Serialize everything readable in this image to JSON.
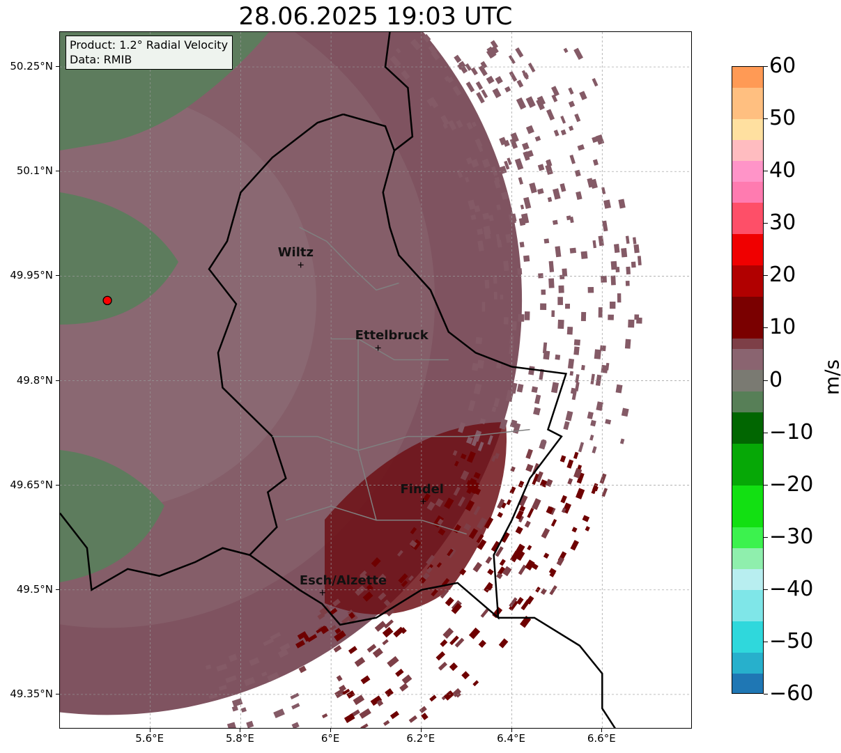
{
  "title": "28.06.2025 19:03 UTC",
  "info_box": {
    "line1": "Product: 1.2° Radial Velocity",
    "line2": "Data: RMIB"
  },
  "axes": {
    "lat_ticks": [
      "50.25°N",
      "50.1°N",
      "49.95°N",
      "49.8°N",
      "49.65°N",
      "49.5°N",
      "49.35°N"
    ],
    "lon_ticks": [
      "5.6°E",
      "5.8°E",
      "6°E",
      "6.2°E",
      "6.4°E",
      "6.6°E"
    ],
    "lat_range": [
      49.3,
      50.3
    ],
    "lon_range": [
      5.4,
      6.8
    ]
  },
  "cities": [
    {
      "name": "Wiltz",
      "lat": 49.966,
      "lon": 5.933
    },
    {
      "name": "Ettelbruck",
      "lat": 49.847,
      "lon": 6.104
    },
    {
      "name": "Findel",
      "lat": 49.627,
      "lon": 6.204
    },
    {
      "name": "Esch/Alzette",
      "lat": 49.496,
      "lon": 5.981
    }
  ],
  "radar_site": {
    "lat": 49.915,
    "lon": 5.505
  },
  "colorbar": {
    "unit": "m/s",
    "min": -60,
    "max": 60,
    "ticks": [
      "60",
      "50",
      "40",
      "30",
      "20",
      "10",
      "0",
      "−10",
      "−20",
      "−30",
      "−40",
      "−50",
      "−60"
    ],
    "segments": [
      {
        "from": -60,
        "to": -56,
        "color": "#1f77b4"
      },
      {
        "from": -56,
        "to": -52,
        "color": "#27b0cc"
      },
      {
        "from": -52,
        "to": -46,
        "color": "#2fd8dc"
      },
      {
        "from": -46,
        "to": -40,
        "color": "#7fe6e8"
      },
      {
        "from": -40,
        "to": -36,
        "color": "#b8eef0"
      },
      {
        "from": -36,
        "to": -32,
        "color": "#8fefad"
      },
      {
        "from": -32,
        "to": -28,
        "color": "#3cf24e"
      },
      {
        "from": -28,
        "to": -20,
        "color": "#12e012"
      },
      {
        "from": -20,
        "to": -12,
        "color": "#06a806"
      },
      {
        "from": -12,
        "to": -6,
        "color": "#016601"
      },
      {
        "from": -6,
        "to": -2,
        "color": "#577f57"
      },
      {
        "from": -2,
        "to": 2,
        "color": "#7a7a72"
      },
      {
        "from": 2,
        "to": 6,
        "color": "#8a6470"
      },
      {
        "from": 6,
        "to": 8,
        "color": "#7d3f47"
      },
      {
        "from": 8,
        "to": 16,
        "color": "#7a0000"
      },
      {
        "from": 16,
        "to": 22,
        "color": "#b10000"
      },
      {
        "from": 22,
        "to": 28,
        "color": "#f00000"
      },
      {
        "from": 28,
        "to": 34,
        "color": "#fe4f68"
      },
      {
        "from": 34,
        "to": 38,
        "color": "#ff7bb0"
      },
      {
        "from": 38,
        "to": 42,
        "color": "#ff94c8"
      },
      {
        "from": 42,
        "to": 46,
        "color": "#ffbcc0"
      },
      {
        "from": 46,
        "to": 50,
        "color": "#ffe0a0"
      },
      {
        "from": 50,
        "to": 56,
        "color": "#ffbf80"
      },
      {
        "from": 56,
        "to": 60,
        "color": "#ff9a55"
      }
    ]
  },
  "colors": {
    "velocity_main": "#845a66",
    "velocity_outbound": "#7a0000",
    "velocity_inbound": "#5c7b5c",
    "border": "#000000",
    "canton_border": "#808080",
    "radar_site": "#ff0000"
  }
}
